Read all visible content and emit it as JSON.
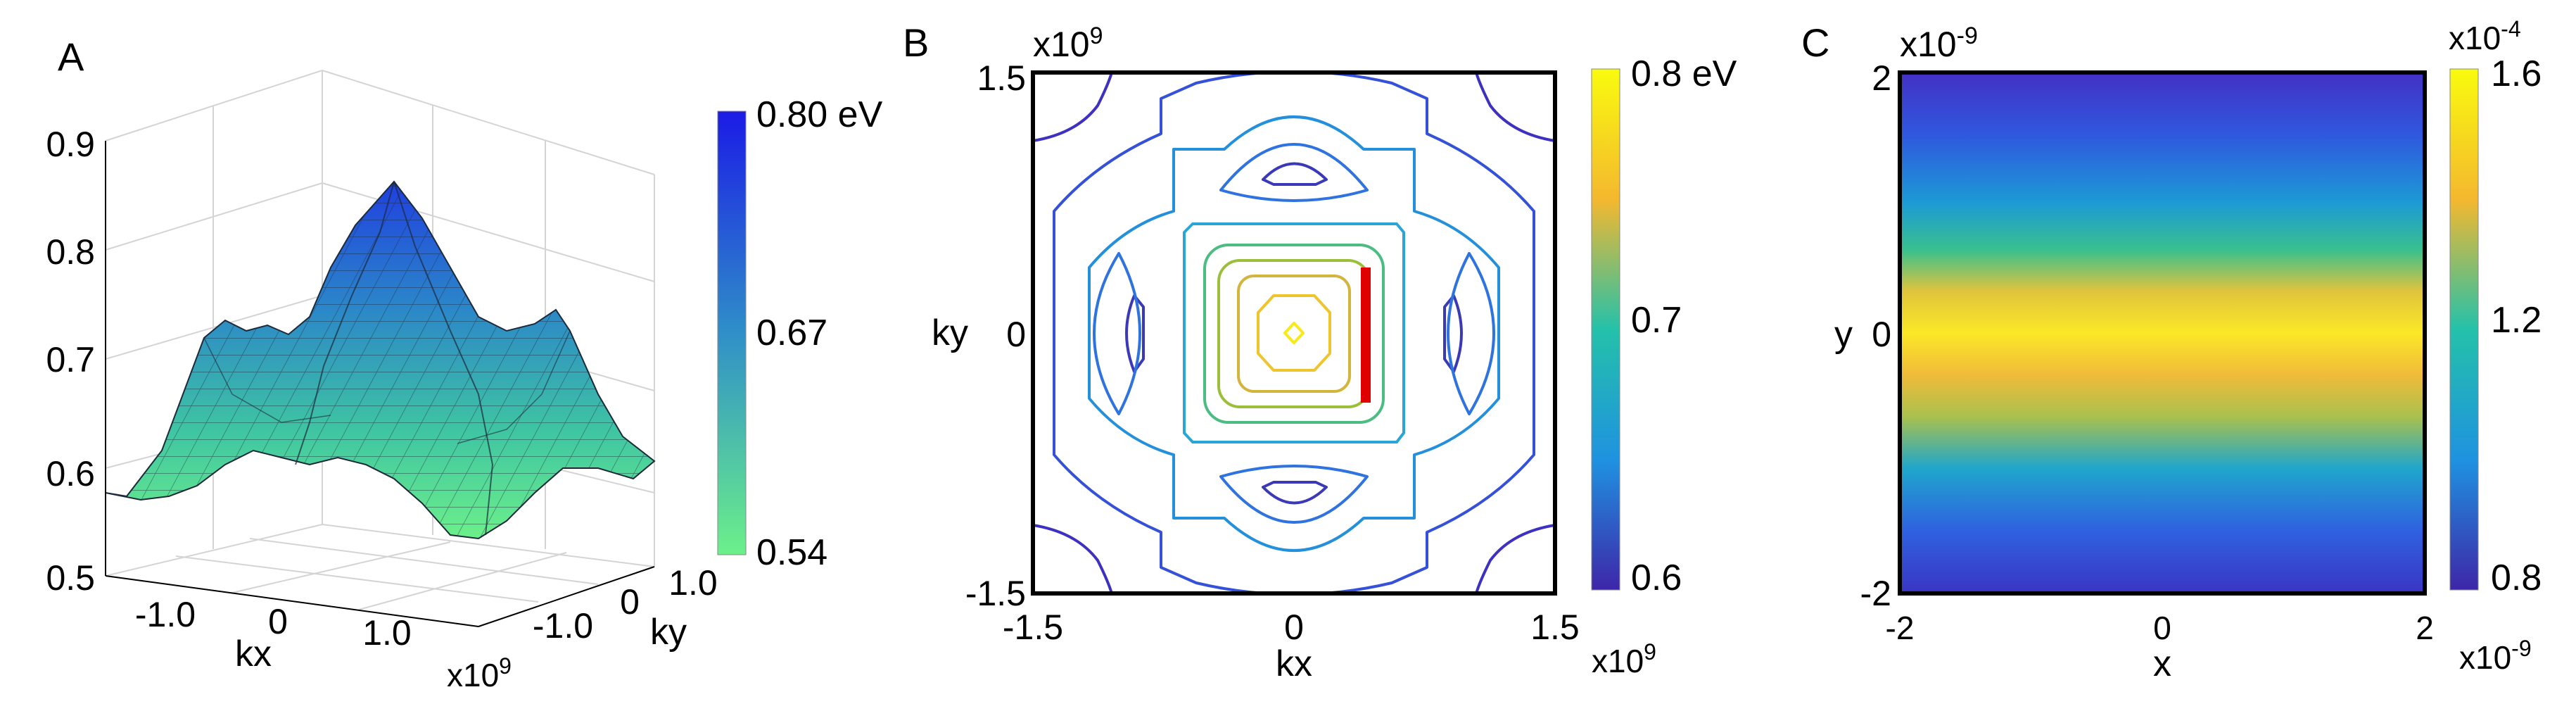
{
  "chart_data": [
    {
      "type": "surface",
      "panel_label": "A",
      "zlim": [
        0.5,
        0.9
      ],
      "z_ticks": [
        "0.5",
        "0.6",
        "0.7",
        "0.8",
        "0.9"
      ],
      "xlabel": "kx",
      "ylabel": "ky",
      "kx_ticks": [
        "-1.0",
        "0",
        "1.0"
      ],
      "ky_ticks": [
        "-1.0",
        "0",
        "1.0"
      ],
      "axis_exponent": "x10^9",
      "grid": true,
      "colorbar": {
        "ticks": [
          "0.80 eV",
          "0.67",
          "0.54"
        ],
        "range": [
          0.54,
          0.8
        ],
        "colors": [
          "#1b1be6",
          "#2f8fc8",
          "#6cf08a"
        ]
      },
      "surface_summary": {
        "center_peak": 0.8,
        "edge_value": 0.58,
        "shoulder_peaks": 0.68,
        "min_value": 0.55
      }
    },
    {
      "type": "contour",
      "panel_label": "B",
      "xlabel": "kx",
      "ylabel": "ky",
      "xlim": [
        -1.5,
        1.5
      ],
      "ylim": [
        -1.5,
        1.5
      ],
      "x_ticks": [
        "-1.5",
        "0",
        "1.5"
      ],
      "y_ticks": [
        "1.5",
        "0",
        "-1.5"
      ],
      "axis_exponent": "x10^9",
      "colorbar": {
        "ticks": [
          "0.8 eV",
          "0.7",
          "0.6"
        ],
        "range": [
          0.6,
          0.8
        ],
        "colors": [
          "#3e26a8",
          "#1f92e0",
          "#24c1aa",
          "#a5be36",
          "#f9fb0e"
        ]
      },
      "marker": {
        "color": "#e00000",
        "x": 0.37,
        "y_range": [
          -0.37,
          0.37
        ]
      }
    },
    {
      "type": "heatmap",
      "panel_label": "C",
      "xlabel": "x",
      "ylabel": "y",
      "xlim": [
        -2,
        2
      ],
      "ylim": [
        -2,
        2
      ],
      "x_ticks": [
        "-2",
        "0",
        "2"
      ],
      "y_ticks": [
        "2",
        "0",
        "-2"
      ],
      "axis_exponent": "x10^-9",
      "colorbar": {
        "ticks": [
          "1.6",
          "1.2",
          "0.8"
        ],
        "exponent": "x10^-4",
        "range": [
          0.8,
          1.6
        ],
        "colors": [
          "#3e26a8",
          "#1f92e0",
          "#24c1aa",
          "#f4b82f",
          "#f9fb0e"
        ]
      },
      "profile_y": [
        -2,
        -1.5,
        -1,
        -0.5,
        0,
        0.5,
        1,
        1.5,
        2
      ],
      "profile_value": [
        0.82,
        0.98,
        1.22,
        1.48,
        1.58,
        1.48,
        1.22,
        0.98,
        0.86
      ]
    }
  ]
}
